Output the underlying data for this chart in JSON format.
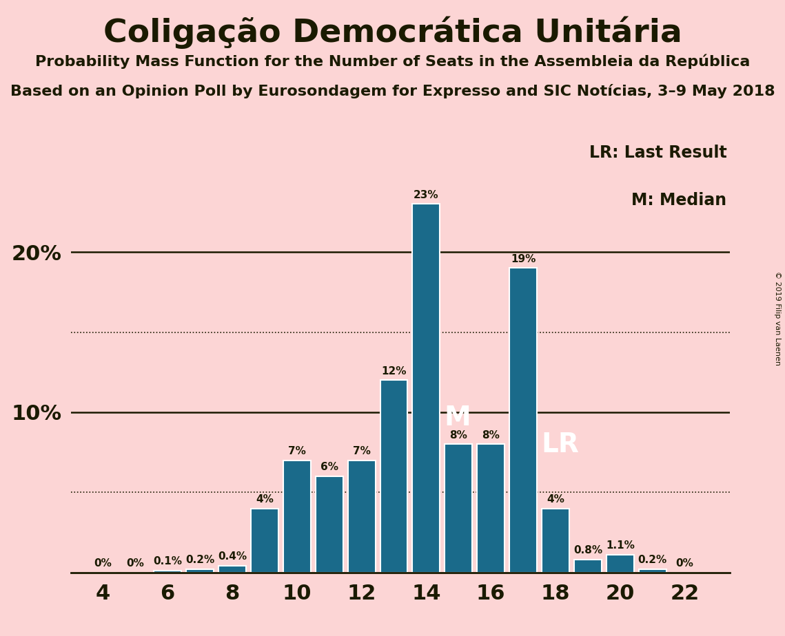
{
  "title": "Coligação Democrática Unitária",
  "subtitle1": "Probability Mass Function for the Number of Seats in the Assembleia da República",
  "subtitle2": "Based on an Opinion Poll by Eurosondagem for Expresso and SIC Notícias, 3–9 May 2018",
  "copyright": "© 2019 Filip van Laenen",
  "seats": [
    4,
    5,
    6,
    7,
    8,
    9,
    10,
    11,
    12,
    13,
    14,
    15,
    16,
    17,
    18,
    19,
    20,
    21,
    22
  ],
  "probabilities": [
    0.0,
    0.0,
    0.1,
    0.2,
    0.4,
    4.0,
    7.0,
    6.0,
    7.0,
    12.0,
    23.0,
    8.0,
    8.0,
    19.0,
    4.0,
    0.8,
    1.1,
    0.2,
    0.0
  ],
  "labels": [
    "0%",
    "0%",
    "0.1%",
    "0.2%",
    "0.4%",
    "4%",
    "7%",
    "6%",
    "7%",
    "12%",
    "23%",
    "8%",
    "8%",
    "19%",
    "4%",
    "0.8%",
    "1.1%",
    "0.2%",
    "0%"
  ],
  "bar_color": "#1a6a8a",
  "background_color": "#fcd5d5",
  "text_color": "#1a1a00",
  "median_seat": 14,
  "last_result_seat": 17,
  "solid_hlines": [
    10,
    20
  ],
  "dotted_hlines": [
    5,
    15
  ],
  "ylim": [
    0,
    27
  ],
  "legend_lr": "LR: Last Result",
  "legend_m": "M: Median"
}
